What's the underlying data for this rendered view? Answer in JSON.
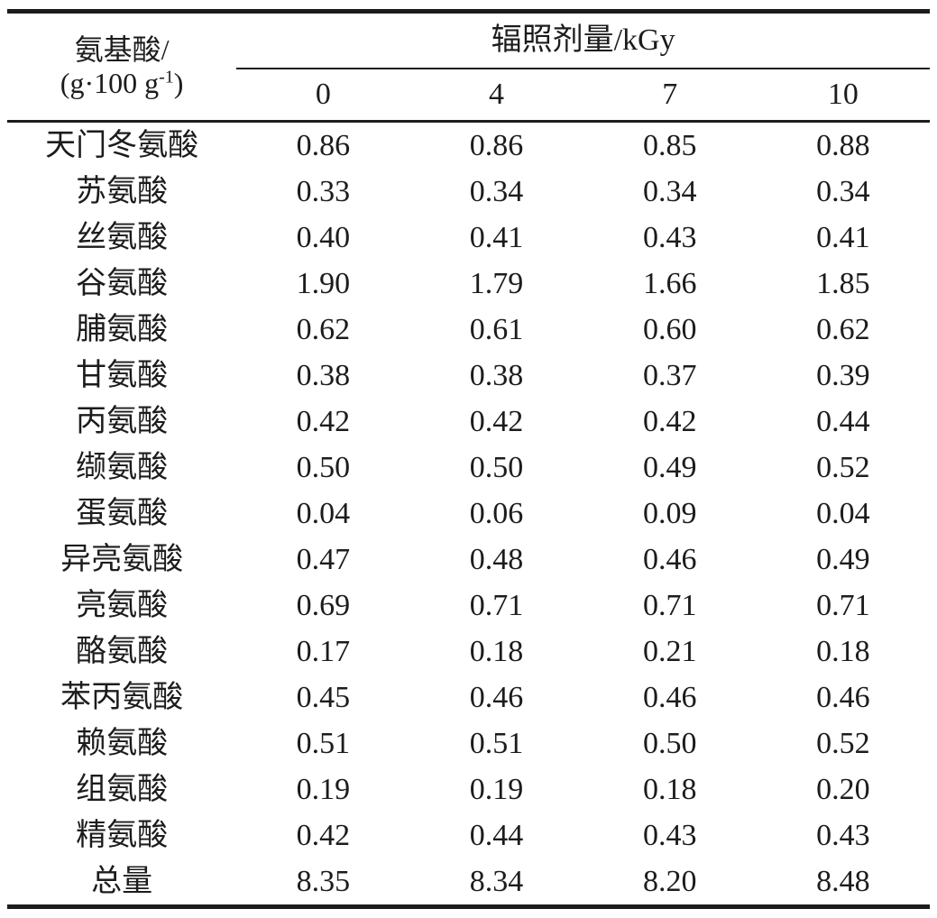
{
  "table": {
    "stub_header": {
      "line1": "氨基酸/",
      "unit_open": "(g·100 g",
      "unit_sup": "-1",
      "unit_close": ")"
    },
    "span_header": "辐照剂量/kGy",
    "dose_columns": [
      "0",
      "4",
      "7",
      "10"
    ],
    "rows": [
      {
        "name": "天门冬氨酸",
        "values": [
          "0.86",
          "0.86",
          "0.85",
          "0.88"
        ]
      },
      {
        "name": "苏氨酸",
        "values": [
          "0.33",
          "0.34",
          "0.34",
          "0.34"
        ]
      },
      {
        "name": "丝氨酸",
        "values": [
          "0.40",
          "0.41",
          "0.43",
          "0.41"
        ]
      },
      {
        "name": "谷氨酸",
        "values": [
          "1.90",
          "1.79",
          "1.66",
          "1.85"
        ]
      },
      {
        "name": "脯氨酸",
        "values": [
          "0.62",
          "0.61",
          "0.60",
          "0.62"
        ]
      },
      {
        "name": "甘氨酸",
        "values": [
          "0.38",
          "0.38",
          "0.37",
          "0.39"
        ]
      },
      {
        "name": "丙氨酸",
        "values": [
          "0.42",
          "0.42",
          "0.42",
          "0.44"
        ]
      },
      {
        "name": "缬氨酸",
        "values": [
          "0.50",
          "0.50",
          "0.49",
          "0.52"
        ]
      },
      {
        "name": "蛋氨酸",
        "values": [
          "0.04",
          "0.06",
          "0.09",
          "0.04"
        ]
      },
      {
        "name": "异亮氨酸",
        "values": [
          "0.47",
          "0.48",
          "0.46",
          "0.49"
        ]
      },
      {
        "name": "亮氨酸",
        "values": [
          "0.69",
          "0.71",
          "0.71",
          "0.71"
        ]
      },
      {
        "name": "酪氨酸",
        "values": [
          "0.17",
          "0.18",
          "0.21",
          "0.18"
        ]
      },
      {
        "name": "苯丙氨酸",
        "values": [
          "0.45",
          "0.46",
          "0.46",
          "0.46"
        ]
      },
      {
        "name": "赖氨酸",
        "values": [
          "0.51",
          "0.51",
          "0.50",
          "0.52"
        ]
      },
      {
        "name": "组氨酸",
        "values": [
          "0.19",
          "0.19",
          "0.18",
          "0.20"
        ]
      },
      {
        "name": "精氨酸",
        "values": [
          "0.42",
          "0.44",
          "0.43",
          "0.43"
        ]
      },
      {
        "name": "总量",
        "values": [
          "8.35",
          "8.34",
          "8.20",
          "8.48"
        ]
      }
    ],
    "colors": {
      "text": "#1c1c1c",
      "rule": "#1c1c1c",
      "background": "#ffffff"
    }
  }
}
